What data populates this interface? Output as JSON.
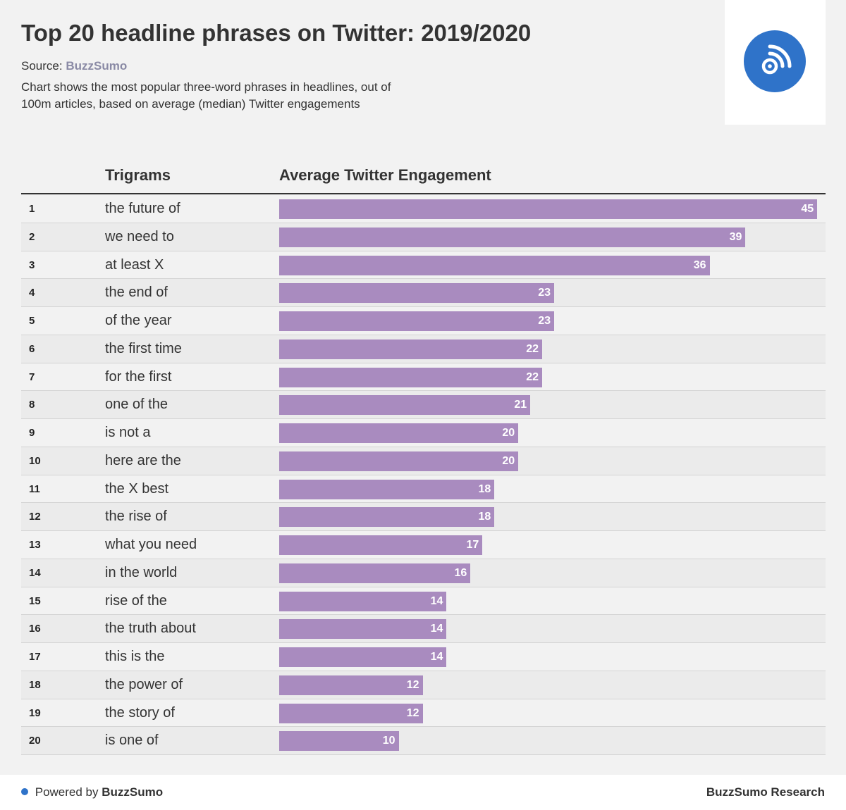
{
  "header": {
    "title": "Top 20 headline phrases on Twitter: 2019/2020",
    "source_label": "Source:",
    "source_name": "BuzzSumo",
    "description": "Chart shows the most popular three-word phrases in headlines, out of 100m articles, based on average (median) Twitter engagements",
    "logo_icon": "rss-feed-icon",
    "logo_color": "#2f73c9"
  },
  "table": {
    "col_trigrams": "Trigrams",
    "col_engagement": "Average Twitter Engagement"
  },
  "chart_data": {
    "type": "bar",
    "orientation": "horizontal",
    "categories": [
      "the future of",
      "we need to",
      "at least X",
      "the end of",
      "of the year",
      "the first time",
      "for the first",
      "one of the",
      "is not a",
      "here are the",
      "the X best",
      "the rise of",
      "what you need",
      "in the world",
      "rise of the",
      "the truth about",
      "this is the",
      "the power of",
      "the story of",
      "is one of"
    ],
    "ranks": [
      "1",
      "2",
      "3",
      "4",
      "5",
      "6",
      "7",
      "8",
      "9",
      "10",
      "11",
      "12",
      "13",
      "14",
      "15",
      "16",
      "17",
      "18",
      "19",
      "20"
    ],
    "values": [
      45,
      39,
      36,
      23,
      23,
      22,
      22,
      21,
      20,
      20,
      18,
      18,
      17,
      16,
      14,
      14,
      14,
      12,
      12,
      10
    ],
    "xlim": [
      0,
      45.7
    ],
    "bar_color": "#a98bbf",
    "grid": false,
    "legend": "none"
  },
  "footer": {
    "powered_prefix": "Powered by",
    "powered_brand": "BuzzSumo",
    "research": "BuzzSumo Research",
    "dot_color": "#2f73c9"
  }
}
